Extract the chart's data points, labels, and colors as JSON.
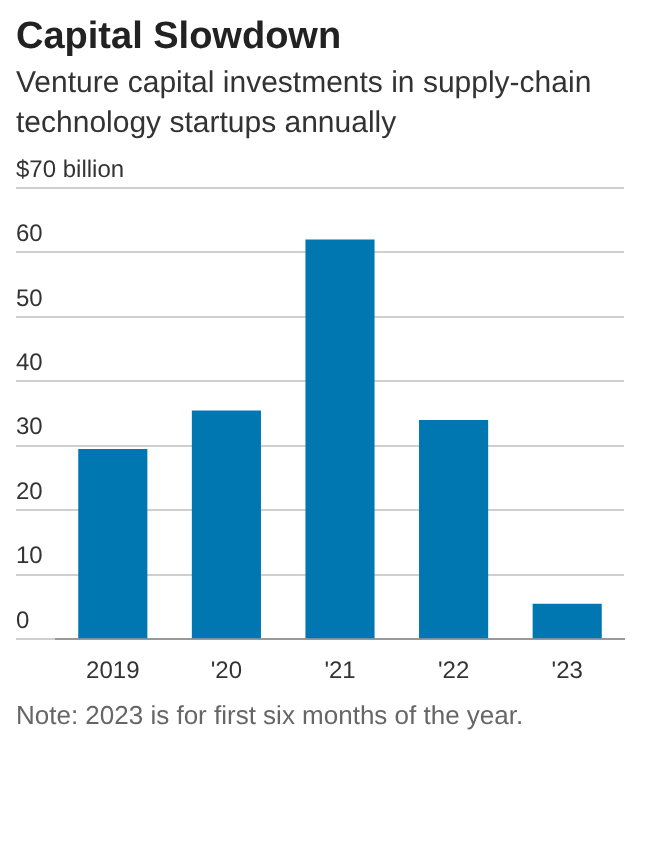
{
  "chart_data": {
    "type": "bar",
    "title": "Capital Slowdown",
    "subtitle": "Venture capital investments in supply-chain technology startups annually",
    "categories": [
      "2019",
      "'20",
      "'21",
      "'22",
      "'23"
    ],
    "values": [
      29.5,
      35.5,
      62,
      34,
      5.5
    ],
    "color": "#0077b0",
    "ylim": [
      0,
      70
    ],
    "yticks": [
      0,
      10,
      20,
      30,
      40,
      50,
      60,
      {
        "value": 70,
        "label": "$70 billion"
      }
    ],
    "grid": "y",
    "annotations": [
      "Note: 2023 is for first six months of the year."
    ]
  }
}
